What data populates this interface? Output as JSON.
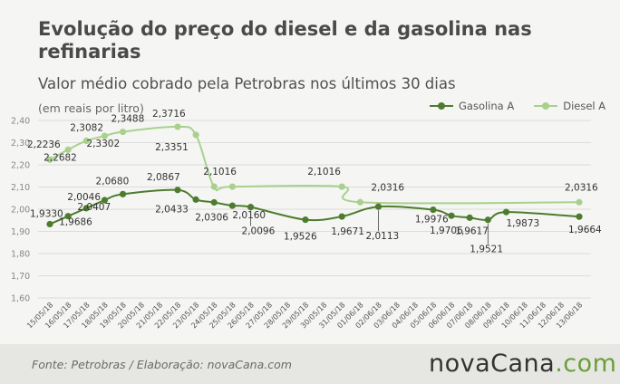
{
  "header": {
    "title": "Evolução do preço do diesel e da gasolina nas refinarias",
    "subtitle": "Valor médio cobrado pela Petrobras nos últimos 30 dias",
    "unit": "(em reais por litro)"
  },
  "colors": {
    "gasolina": "#4e7c2f",
    "diesel": "#a9d18e",
    "grid": "#dcdcdc"
  },
  "chart_data": {
    "type": "line",
    "ylim": [
      1.6,
      2.4
    ],
    "yticks": [
      "1,60",
      "1,70",
      "1,80",
      "1,90",
      "2,00",
      "2,10",
      "2,20",
      "2,30",
      "2,40"
    ],
    "categories": [
      "15/05/18",
      "16/05/18",
      "17/05/18",
      "18/05/18",
      "19/05/18",
      "20/05/18",
      "21/05/18",
      "22/05/18",
      "23/05/18",
      "24/05/18",
      "25/05/18",
      "26/05/18",
      "27/05/18",
      "28/05/18",
      "29/05/18",
      "30/05/18",
      "31/05/18",
      "01/06/18",
      "02/06/18",
      "03/06/18",
      "04/06/18",
      "05/06/18",
      "06/06/18",
      "07/06/18",
      "08/06/18",
      "09/06/18",
      "10/06/18",
      "11/06/18",
      "12/06/18",
      "13/06/18"
    ],
    "series": [
      {
        "name": "Gasolina A",
        "points": [
          [
            0,
            1.933
          ],
          [
            1,
            1.9686
          ],
          [
            2,
            2.0046
          ],
          [
            3,
            2.0407
          ],
          [
            4,
            2.068
          ],
          [
            7,
            2.0867
          ],
          [
            8,
            2.0433
          ],
          [
            9,
            2.0306
          ],
          [
            10,
            2.016
          ],
          [
            11,
            2.0096
          ],
          [
            14,
            1.9526
          ],
          [
            16,
            1.9671
          ],
          [
            18,
            2.0113
          ],
          [
            21,
            1.9976
          ],
          [
            22,
            1.9706
          ],
          [
            23,
            1.9617
          ],
          [
            24,
            1.9521
          ],
          [
            25,
            1.9873
          ],
          [
            29,
            1.9664
          ]
        ]
      },
      {
        "name": "Diesel A",
        "points": [
          [
            0,
            2.2236
          ],
          [
            1,
            2.2682
          ],
          [
            2,
            2.3082
          ],
          [
            3,
            2.3302
          ],
          [
            4,
            2.3488
          ],
          [
            7,
            2.3716
          ],
          [
            8,
            2.3351
          ],
          [
            9,
            2.1016
          ],
          [
            10,
            2.1016
          ],
          [
            16,
            2.1016
          ],
          [
            17,
            2.0316
          ],
          [
            29,
            2.0316
          ]
        ]
      }
    ],
    "labels": [
      {
        "series": 0,
        "i": 0,
        "text": "1,9330"
      },
      {
        "series": 0,
        "i": 1,
        "text": "1,9686"
      },
      {
        "series": 0,
        "i": 2,
        "text": "2,0046"
      },
      {
        "series": 0,
        "i": 3,
        "text": "2,0407"
      },
      {
        "series": 0,
        "i": 4,
        "text": "2,0680"
      },
      {
        "series": 0,
        "i": 5,
        "text": "2,0867"
      },
      {
        "series": 0,
        "i": 6,
        "text": "2,0433"
      },
      {
        "series": 0,
        "i": 7,
        "text": "2,0306"
      },
      {
        "series": 0,
        "i": 8,
        "text": "2,0160"
      },
      {
        "series": 0,
        "i": 9,
        "text": "2,0096"
      },
      {
        "series": 0,
        "i": 10,
        "text": "1,9526"
      },
      {
        "series": 0,
        "i": 11,
        "text": "1,9671"
      },
      {
        "series": 0,
        "i": 12,
        "text": "2,0113"
      },
      {
        "series": 0,
        "i": 13,
        "text": "1,9976"
      },
      {
        "series": 0,
        "i": 14,
        "text": "1,9706"
      },
      {
        "series": 0,
        "i": 15,
        "text": "1,9617"
      },
      {
        "series": 0,
        "i": 16,
        "text": "1,9521"
      },
      {
        "series": 0,
        "i": 17,
        "text": "1,9873"
      },
      {
        "series": 0,
        "i": 18,
        "text": "1,9664"
      },
      {
        "series": 1,
        "i": 0,
        "text": "2,2236"
      },
      {
        "series": 1,
        "i": 1,
        "text": "2,2682"
      },
      {
        "series": 1,
        "i": 2,
        "text": "2,3082"
      },
      {
        "series": 1,
        "i": 3,
        "text": "2,3302"
      },
      {
        "series": 1,
        "i": 4,
        "text": "2,3488"
      },
      {
        "series": 1,
        "i": 5,
        "text": "2,3716"
      },
      {
        "series": 1,
        "i": 6,
        "text": "2,3351"
      },
      {
        "series": 1,
        "i": 7,
        "text": "2,1016"
      },
      {
        "series": 1,
        "i": 9,
        "text": "2,1016"
      },
      {
        "series": 1,
        "i": 10,
        "text": "2,0316"
      },
      {
        "series": 1,
        "i": 11,
        "text": "2,0316"
      }
    ]
  },
  "footer": {
    "source": "Fonte:  Petrobras  / Elaboração:  novaCana.com",
    "logo_main": "novaCana",
    "logo_accent": ".com"
  }
}
